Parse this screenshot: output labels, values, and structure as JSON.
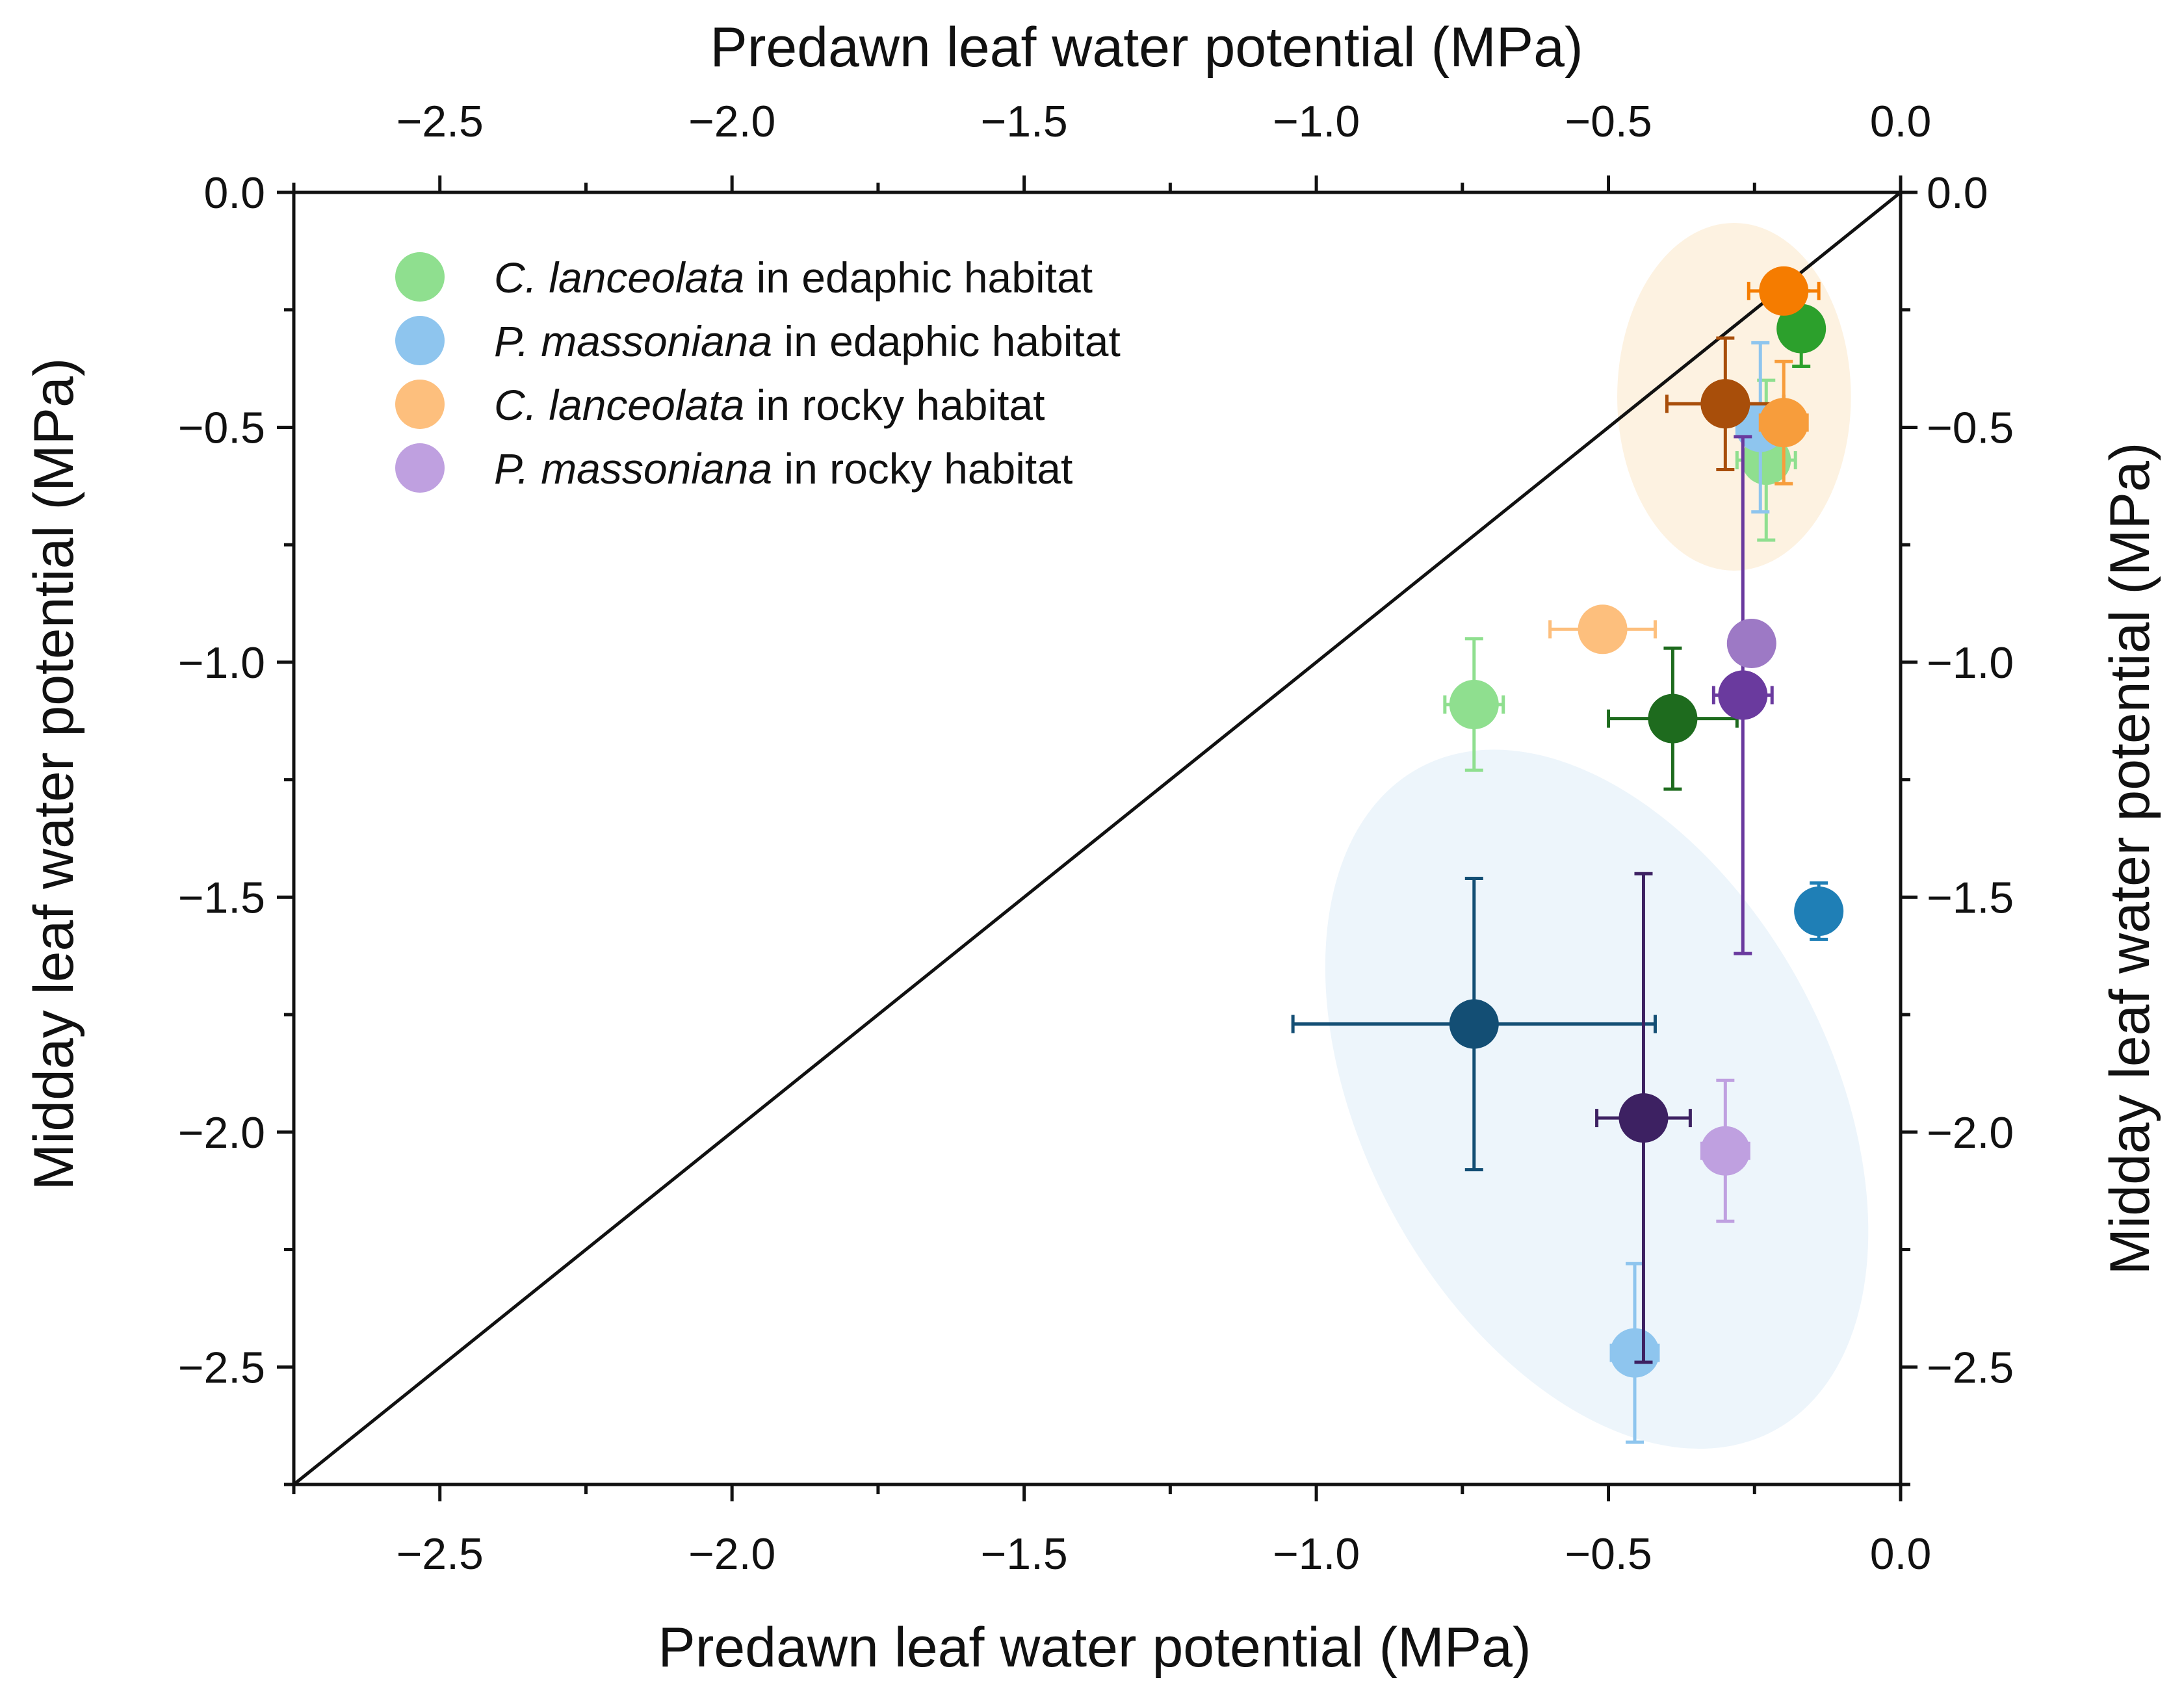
{
  "chart_data": {
    "type": "scatter",
    "axes": {
      "bottom_title": "Predawn leaf water potential (MPa)",
      "top_title": "Predawn leaf water potential (MPa)",
      "left_title": "Midday leaf water potential (MPa)",
      "right_title": "Midday leaf water potential (MPa)",
      "xlim": [
        -2.75,
        0.0
      ],
      "ylim": [
        -2.75,
        0.0
      ],
      "x_major_ticks": [
        -2.5,
        -2.0,
        -1.5,
        -1.0,
        -0.5,
        0.0
      ],
      "y_major_ticks": [
        -2.5,
        -2.0,
        -1.5,
        -1.0,
        -0.5,
        0.0
      ],
      "x_tick_labels": [
        "−2.5",
        "−2.0",
        "−1.5",
        "−1.0",
        "−0.5",
        "0.0"
      ],
      "y_tick_labels": [
        "−2.5",
        "−2.0",
        "−1.5",
        "−1.0",
        "−0.5",
        "0.0"
      ],
      "minor_tick_step": 0.25
    },
    "reference_line": {
      "from": [
        -2.75,
        -2.75
      ],
      "to": [
        0.0,
        0.0
      ],
      "color": "#111111"
    },
    "regions": [
      {
        "name": "rocky-region",
        "cx": -0.285,
        "cy": -0.435,
        "rx": 0.2,
        "ry": 0.37,
        "color": "#fdf2e1"
      },
      {
        "name": "edaphic-region",
        "cx": -0.52,
        "cy": -1.93,
        "rx": 0.4,
        "ry": 0.8,
        "tilt": -28,
        "color": "#edf5fb"
      }
    ],
    "legend": [
      {
        "species": "C. lanceolata",
        "habitat": " in edaphic habitat",
        "color": "#8fdf8f"
      },
      {
        "species": "P. massoniana",
        "habitat": " in edaphic habitat",
        "color": "#8ec5ee"
      },
      {
        "species": "C. lanceolata",
        "habitat": " in rocky habitat",
        "color": "#fdbf7d"
      },
      {
        "species": "P. massoniana",
        "habitat": " in rocky habitat",
        "color": "#bfa0e0"
      }
    ],
    "series": [
      {
        "name": "C. lanceolata in edaphic habitat",
        "points": [
          {
            "x": -0.73,
            "y": -1.09,
            "x_err": 0.05,
            "y_err": 0.14,
            "color": "#8fdf8f"
          },
          {
            "x": -0.39,
            "y": -1.12,
            "x_err": 0.11,
            "y_err": 0.15,
            "color": "#1e6b1e"
          },
          {
            "x": -0.17,
            "y": -0.29,
            "x_err": 0.03,
            "y_err": 0.08,
            "color": "#2ca02c"
          },
          {
            "x": -0.23,
            "y": -0.57,
            "x_err": 0.05,
            "y_err": 0.17,
            "color": "#8fdf8f"
          }
        ]
      },
      {
        "name": "P. massoniana in edaphic habitat",
        "points": [
          {
            "x": -0.73,
            "y": -1.77,
            "x_err": 0.31,
            "y_err": 0.31,
            "color": "#134e74"
          },
          {
            "x": -0.14,
            "y": -1.53,
            "x_err": 0.02,
            "y_err": 0.06,
            "color": "#1f7fb6"
          },
          {
            "x": -0.455,
            "y": -2.47,
            "x_err": 0.04,
            "y_err": 0.19,
            "color": "#8ec5ee"
          },
          {
            "x": -0.24,
            "y": -0.5,
            "x_err": 0.04,
            "y_err": 0.18,
            "color": "#8ec5ee"
          }
        ]
      },
      {
        "name": "C. lanceolata in rocky habitat",
        "points": [
          {
            "x": -0.51,
            "y": -0.93,
            "x_err": 0.09,
            "y_err": 0.03,
            "color": "#fdbf7d"
          },
          {
            "x": -0.3,
            "y": -0.45,
            "x_err": 0.1,
            "y_err": 0.14,
            "color": "#a84e0a"
          },
          {
            "x": -0.2,
            "y": -0.49,
            "x_err": 0.04,
            "y_err": 0.13,
            "color": "#f79d3c"
          },
          {
            "x": -0.2,
            "y": -0.21,
            "x_err": 0.06,
            "y_err": 0.03,
            "color": "#f57c00"
          }
        ]
      },
      {
        "name": "P. massoniana in rocky habitat",
        "points": [
          {
            "x": -0.44,
            "y": -1.97,
            "x_err": 0.08,
            "y_err": 0.52,
            "color": "#3d2162"
          },
          {
            "x": -0.27,
            "y": -1.07,
            "x_err": 0.05,
            "y_err": 0.55,
            "color": "#6a3a9e"
          },
          {
            "x": -0.255,
            "y": -0.96,
            "x_err": 0.0,
            "y_err": 0.0,
            "color": "#9d79c5"
          },
          {
            "x": -0.3,
            "y": -2.04,
            "x_err": 0.04,
            "y_err": 0.15,
            "color": "#bfa0e0"
          }
        ]
      }
    ]
  }
}
